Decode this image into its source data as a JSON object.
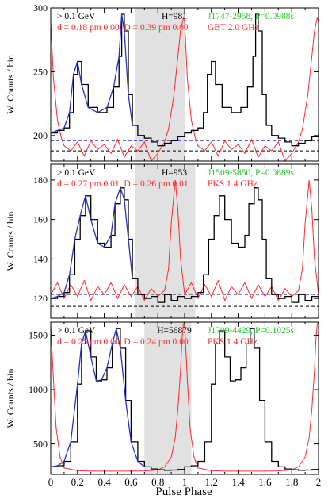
{
  "figure": {
    "xlabel": "Pulse Phase",
    "ylabel": "W. Counts / bin",
    "x_ticks": [
      "0",
      "0.2",
      "0.4",
      "0.6",
      "0.8",
      "1",
      "1.2",
      "1.4",
      "1.6",
      "1.8",
      "2"
    ]
  },
  "chart_data": [
    {
      "type": "line",
      "energy_label": "> 0.1 GeV",
      "h_label": "H=981",
      "fit_label": "d = 0.18 pm 0.00, D = 0.39 pm 0.00",
      "psr_label": "J1747-2958, P=0.0988s",
      "radio_label": "GBT 2.0 GHz",
      "xlim": [
        0,
        2
      ],
      "ylim": [
        180,
        300
      ],
      "y_ticks": [
        200,
        250,
        300
      ],
      "offpulse": [
        0.63,
        1.0
      ],
      "background_levels": [
        188,
        196
      ],
      "colors": {
        "gamma": "#000000",
        "radio": "#ff2a2a",
        "fit": "#2233cc",
        "shade": "#e1e1e1",
        "psr": "#22cc22"
      },
      "series": [
        {
          "name": "> 0.1 GeV",
          "x": [
            0,
            0.05,
            0.1,
            0.14,
            0.17,
            0.2,
            0.23,
            0.28,
            0.35,
            0.42,
            0.47,
            0.51,
            0.53,
            0.55,
            0.58,
            0.61,
            0.65,
            0.7,
            0.75,
            0.8,
            0.85,
            0.9,
            0.95,
            1.0
          ],
          "y": [
            202,
            204,
            206,
            218,
            248,
            258,
            240,
            222,
            218,
            222,
            238,
            262,
            295,
            282,
            232,
            208,
            200,
            198,
            195,
            192,
            194,
            196,
            199,
            202
          ]
        },
        {
          "name": "GBT 2.0 GHz",
          "x": [
            0,
            0.02,
            0.05,
            0.08,
            0.1,
            0.15,
            0.2,
            0.25,
            0.3,
            0.35,
            0.4,
            0.45,
            0.5,
            0.55,
            0.6,
            0.65,
            0.7,
            0.75,
            0.8,
            0.85,
            0.88,
            0.92,
            0.95,
            0.97,
            0.99,
            1.0
          ],
          "y": [
            290,
            245,
            212,
            198,
            192,
            188,
            195,
            184,
            196,
            189,
            193,
            186,
            197,
            183,
            192,
            188,
            195,
            180,
            186,
            195,
            205,
            232,
            262,
            282,
            292,
            290
          ]
        }
      ]
    },
    {
      "type": "line",
      "energy_label": "> 0.1 GeV",
      "h_label": "H=953",
      "fit_label": "d = 0.27 pm 0.01, D = 0.26 pm 0.01",
      "psr_label": "J1509-5850, P=0.0889s",
      "radio_label": "PKS 1.4 GHz",
      "xlim": [
        0,
        2
      ],
      "ylim": [
        110,
        188
      ],
      "y_ticks": [
        120,
        140,
        160,
        180
      ],
      "offpulse": [
        0.63,
        1.08
      ],
      "background_levels": [
        116,
        122
      ],
      "colors": {
        "gamma": "#000000",
        "radio": "#ff2a2a",
        "fit": "#2233cc",
        "shade": "#e1e1e1",
        "psr": "#22cc22"
      },
      "series": [
        {
          "name": "> 0.1 GeV",
          "x": [
            0,
            0.05,
            0.1,
            0.14,
            0.18,
            0.22,
            0.26,
            0.3,
            0.35,
            0.4,
            0.45,
            0.48,
            0.52,
            0.55,
            0.58,
            0.61,
            0.65,
            0.7,
            0.75,
            0.8,
            0.85,
            0.9,
            0.95,
            1.0
          ],
          "y": [
            120,
            121,
            123,
            132,
            150,
            162,
            172,
            160,
            148,
            146,
            152,
            168,
            176,
            170,
            150,
            130,
            122,
            120,
            121,
            118,
            122,
            119,
            121,
            120
          ]
        },
        {
          "name": "PKS 1.4 GHz",
          "x": [
            0,
            0.05,
            0.1,
            0.15,
            0.2,
            0.25,
            0.3,
            0.35,
            0.4,
            0.45,
            0.5,
            0.55,
            0.6,
            0.65,
            0.7,
            0.75,
            0.8,
            0.85,
            0.88,
            0.9,
            0.93,
            0.95,
            0.97,
            1.0
          ],
          "y": [
            122,
            128,
            120,
            127,
            121,
            129,
            119,
            126,
            122,
            128,
            120,
            127,
            121,
            126,
            119,
            125,
            121,
            124,
            135,
            158,
            180,
            165,
            140,
            122
          ]
        }
      ]
    },
    {
      "type": "line",
      "energy_label": "> 0.1 GeV",
      "h_label": "H=56879",
      "fit_label": "d = 0.25 pm 0.00, D = 0.24 pm 0.00",
      "psr_label": "J1709-4429, P=0.1025s",
      "radio_label": "PKS 1.4 GHz",
      "xlim": [
        0,
        2
      ],
      "ylim": [
        220,
        1620
      ],
      "y_ticks": [
        500,
        1000,
        1500
      ],
      "offpulse": [
        0.7,
        1.05
      ],
      "background_levels": [],
      "colors": {
        "gamma": "#000000",
        "radio": "#ff2a2a",
        "fit": "#2233cc",
        "shade": "#e1e1e1",
        "psr": "#22cc22"
      },
      "series": [
        {
          "name": "> 0.1 GeV",
          "x": [
            0,
            0.05,
            0.1,
            0.15,
            0.2,
            0.23,
            0.26,
            0.3,
            0.34,
            0.38,
            0.42,
            0.46,
            0.49,
            0.52,
            0.56,
            0.6,
            0.65,
            0.7,
            0.75,
            0.8,
            0.85,
            0.9,
            0.95,
            1.0
          ],
          "y": [
            290,
            300,
            340,
            520,
            1050,
            1420,
            1540,
            1300,
            1080,
            1090,
            1200,
            1420,
            1560,
            1380,
            900,
            520,
            340,
            290,
            270,
            262,
            258,
            260,
            265,
            280
          ]
        },
        {
          "name": "PKS 1.4 GHz",
          "x": [
            0,
            0.02,
            0.04,
            0.07,
            0.1,
            0.2,
            0.3,
            0.4,
            0.5,
            0.6,
            0.7,
            0.8,
            0.85,
            0.9,
            0.93,
            0.95,
            0.97,
            0.98,
            0.99,
            1.0
          ],
          "y": [
            1600,
            1100,
            650,
            380,
            280,
            255,
            250,
            250,
            250,
            250,
            252,
            262,
            290,
            380,
            560,
            820,
            1180,
            1450,
            1600,
            1620
          ]
        }
      ]
    }
  ]
}
